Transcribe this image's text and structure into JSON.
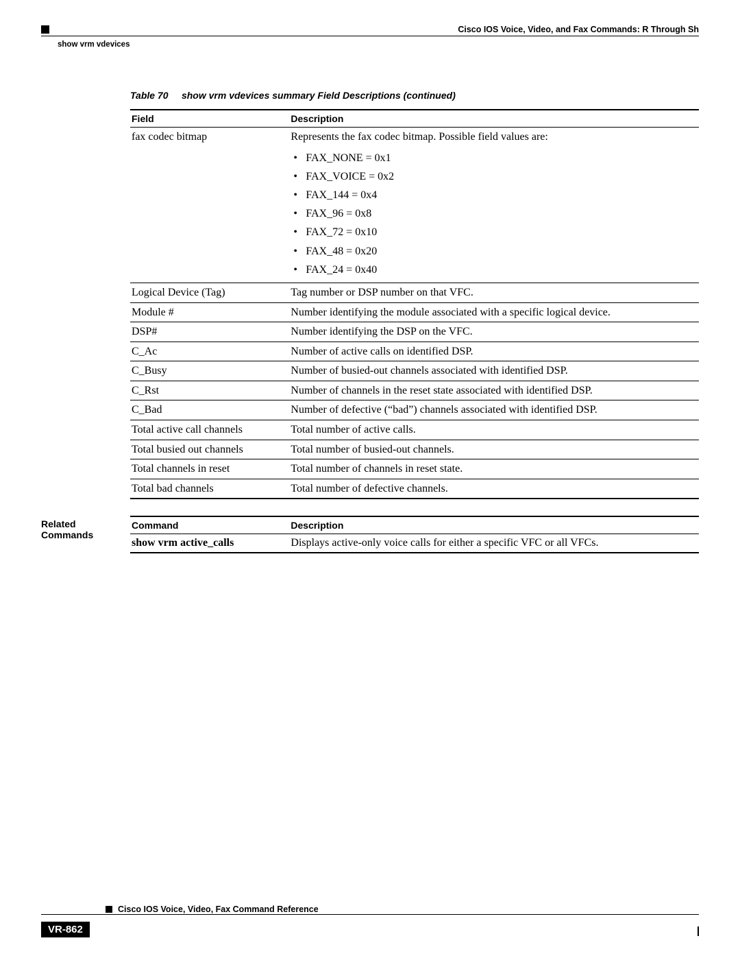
{
  "header": {
    "chapter": "Cisco IOS Voice, Video, and Fax Commands: R Through Sh",
    "command_heading": "show vrm vdevices"
  },
  "table": {
    "number": "Table 70",
    "title": "show vrm vdevices summary Field Descriptions (continued)",
    "head_field": "Field",
    "head_desc": "Description",
    "rows": [
      {
        "field": "fax codec bitmap",
        "desc_intro": "Represents the fax codec bitmap. Possible field values are:",
        "bullets": [
          "FAX_NONE = 0x1",
          "FAX_VOICE = 0x2",
          "FAX_144 = 0x4",
          "FAX_96 = 0x8",
          "FAX_72 = 0x10",
          "FAX_48 = 0x20",
          "FAX_24 = 0x40"
        ]
      },
      {
        "field": "Logical Device (Tag)",
        "desc": "Tag number or DSP number on that VFC."
      },
      {
        "field": "Module #",
        "desc": "Number identifying the module associated with a specific logical device."
      },
      {
        "field": "DSP#",
        "desc": "Number identifying the DSP on the VFC."
      },
      {
        "field": "C_Ac",
        "desc": "Number of active calls on identified DSP."
      },
      {
        "field": "C_Busy",
        "desc": "Number of busied-out channels associated with identified DSP."
      },
      {
        "field": "C_Rst",
        "desc": "Number of channels in the reset state associated with identified DSP."
      },
      {
        "field": "C_Bad",
        "desc": "Number of defective (“bad”) channels associated with identified DSP."
      },
      {
        "field": "Total active call channels",
        "desc": "Total number of active calls."
      },
      {
        "field": "Total busied out channels",
        "desc": "Total number of busied-out channels."
      },
      {
        "field": "Total channels in reset",
        "desc": "Total number of channels in reset state."
      },
      {
        "field": "Total bad channels",
        "desc": "Total number of defective channels."
      }
    ]
  },
  "related": {
    "label": "Related Commands",
    "head_cmd": "Command",
    "head_desc": "Description",
    "rows": [
      {
        "cmd": "show vrm active_calls",
        "desc": "Displays active-only voice calls for either a specific VFC or all VFCs."
      }
    ]
  },
  "footer": {
    "book": "Cisco IOS Voice, Video, Fax Command Reference",
    "page": "VR-862"
  }
}
